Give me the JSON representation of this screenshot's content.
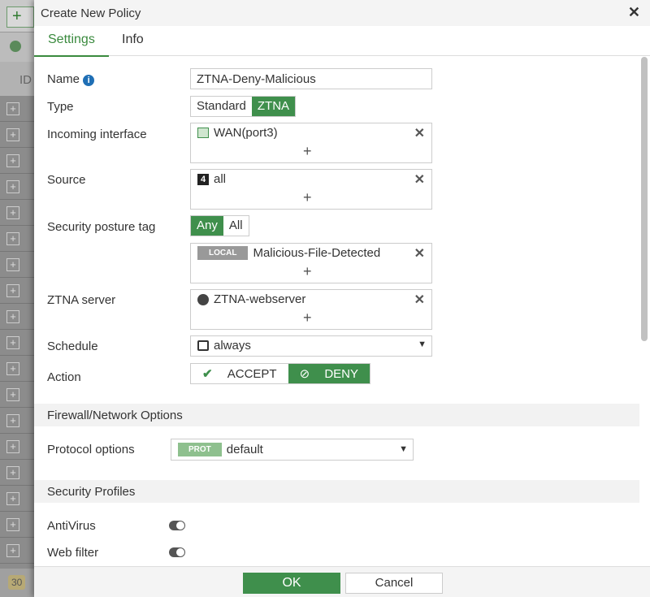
{
  "background": {
    "footer_count": "30",
    "column_header": "ID"
  },
  "dialog": {
    "title": "Create New Policy",
    "tabs": [
      "Settings",
      "Info"
    ]
  },
  "form": {
    "name_label": "Name",
    "name_value": "ZTNA-Deny-Malicious",
    "type_label": "Type",
    "type_options": [
      "Standard",
      "ZTNA"
    ],
    "type_selected": "ZTNA",
    "incoming_label": "Incoming interface",
    "incoming_value": "WAN(port3)",
    "source_label": "Source",
    "source_value": "all",
    "posture_label": "Security posture tag",
    "posture_options": [
      "Any",
      "All"
    ],
    "posture_selected": "Any",
    "posture_badge": "LOCAL",
    "posture_value": "Malicious-File-Detected",
    "server_label": "ZTNA server",
    "server_value": "ZTNA-webserver",
    "schedule_label": "Schedule",
    "schedule_value": "always",
    "action_label": "Action",
    "action_options": [
      "ACCEPT",
      "DENY"
    ],
    "action_selected": "DENY"
  },
  "firewall": {
    "heading": "Firewall/Network Options",
    "protocol_label": "Protocol options",
    "protocol_badge": "PROT",
    "protocol_value": "default"
  },
  "profiles": {
    "heading": "Security Profiles",
    "antivirus_label": "AntiVirus",
    "antivirus_enabled": false,
    "webfilter_label": "Web filter",
    "webfilter_enabled": false
  },
  "buttons": {
    "ok": "OK",
    "cancel": "Cancel"
  },
  "colors": {
    "accent": "#3f8f4c"
  }
}
